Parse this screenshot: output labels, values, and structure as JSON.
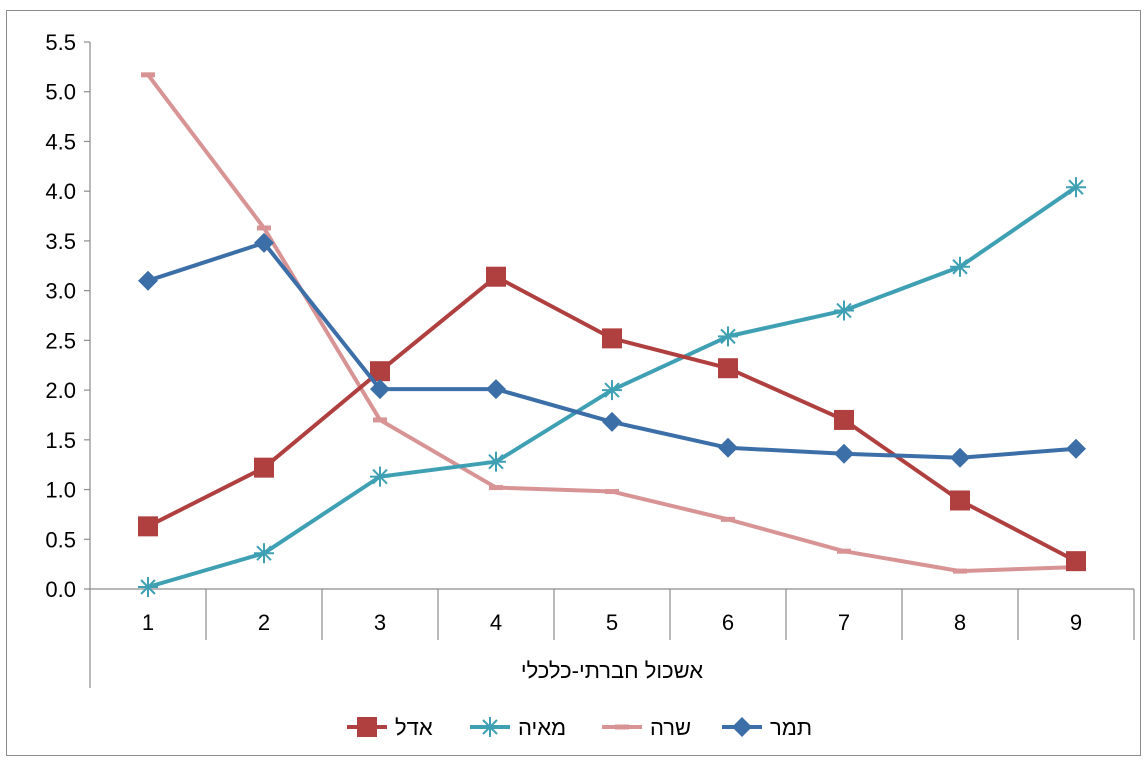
{
  "chart_data": {
    "type": "line",
    "title": "",
    "xlabel": "אשכול חברתי-כלכלי",
    "ylabel": "",
    "categories": [
      "1",
      "2",
      "3",
      "4",
      "5",
      "6",
      "7",
      "8",
      "9"
    ],
    "ylim": [
      0,
      5.5
    ],
    "yticks": [
      "0.0",
      "0.5",
      "1.0",
      "1.5",
      "2.0",
      "2.5",
      "3.0",
      "3.5",
      "4.0",
      "4.5",
      "5.0",
      "5.5"
    ],
    "grid": false,
    "legend_position": "bottom",
    "series": [
      {
        "name": "אדל",
        "color": "#b04040",
        "marker": "square",
        "values": [
          0.63,
          1.22,
          2.19,
          3.14,
          2.52,
          2.22,
          1.7,
          0.89,
          0.28
        ]
      },
      {
        "name": "מאיה",
        "color": "#3fa0b4",
        "marker": "asterisk",
        "values": [
          0.02,
          0.36,
          1.13,
          1.28,
          2.0,
          2.54,
          2.8,
          3.24,
          4.04
        ]
      },
      {
        "name": "שרה",
        "color": "#d89494",
        "marker": "dash",
        "values": [
          5.17,
          3.63,
          1.7,
          1.02,
          0.98,
          0.7,
          0.38,
          0.18,
          0.22
        ]
      },
      {
        "name": "תמר",
        "color": "#3c6ea8",
        "marker": "diamond",
        "values": [
          3.1,
          3.48,
          2.01,
          2.01,
          1.68,
          1.42,
          1.36,
          1.32,
          1.41
        ]
      }
    ]
  }
}
